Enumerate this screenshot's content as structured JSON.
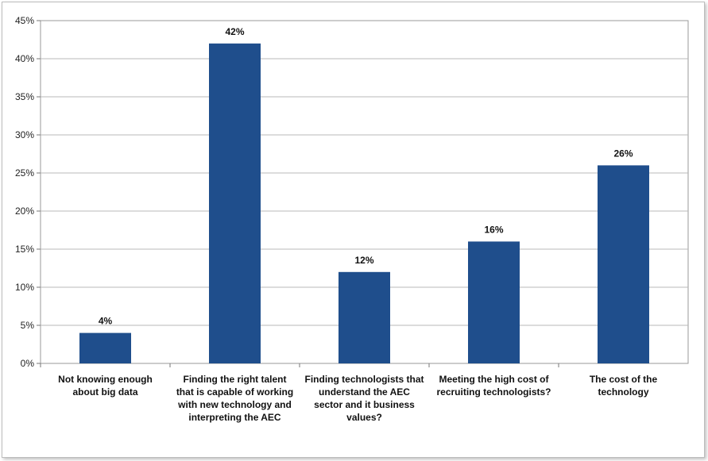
{
  "chart_data": {
    "type": "bar",
    "categories": [
      "Not knowing enough about big data",
      "Finding the right talent that is capable of working with new technology and interpreting the AEC",
      "Finding technologists that understand the AEC sector and it business values?",
      "Meeting the high cost of recruiting technologists?",
      "The cost of the technology"
    ],
    "values": [
      4,
      42,
      12,
      16,
      26
    ],
    "data_labels": [
      "4%",
      "42%",
      "12%",
      "16%",
      "26%"
    ],
    "y_ticks": [
      "0%",
      "5%",
      "10%",
      "15%",
      "20%",
      "25%",
      "30%",
      "35%",
      "40%",
      "45%"
    ],
    "ylim": [
      0,
      45
    ],
    "grid": true,
    "legend": "none",
    "bar_color": "#1f4e8c",
    "grid_color": "#b8b8b8"
  }
}
